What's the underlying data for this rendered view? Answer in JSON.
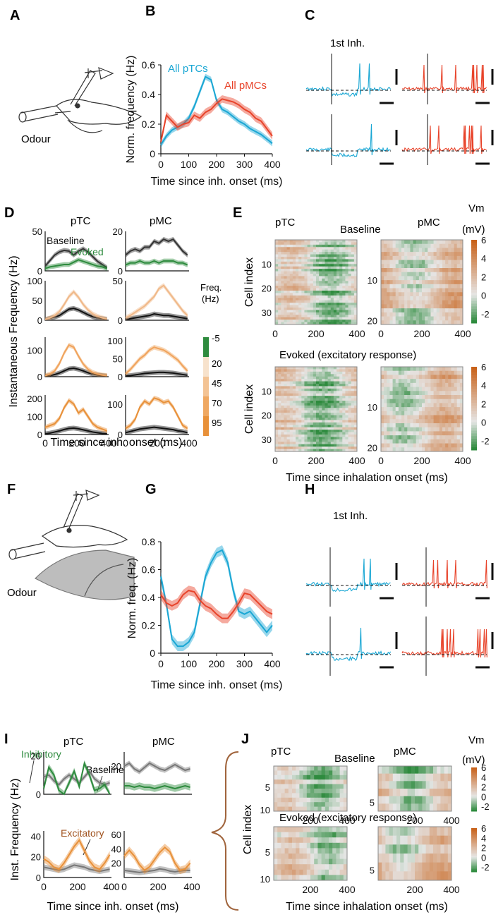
{
  "colors": {
    "ptc": "#1aa7d4",
    "pmc": "#e8432a",
    "baseline": "#111111",
    "evoked": "#2e8b3e",
    "excitatory": "#e8913a",
    "inhibitory": "#2e8b3e",
    "heat_low": "#2e8b3e",
    "heat_mid": "#e6e6e6",
    "heat_high": "#c8621a",
    "grey_shade": "#bdbdbd",
    "brace": "#a0643c"
  },
  "panels": {
    "A": "A",
    "B": "B",
    "C": "C",
    "D": "D",
    "E": "E",
    "F": "F",
    "G": "G",
    "H": "H",
    "I": "I",
    "J": "J"
  },
  "icons": [
    "mouse-headfixed-icon",
    "electrode-icon",
    "odour-port-icon"
  ],
  "labels": {
    "odour": "Odour",
    "first_inh": "1st Inh.",
    "ptc": "pTC",
    "pmc": "pMC",
    "baseline": "Baseline",
    "evoked": "Evoked",
    "excitatory": "Excitatory",
    "inhibitory": "Inhibitory",
    "evoked_exc": "Evoked (excitatory response)",
    "vm": "Vm",
    "vm_unit": "(mV)",
    "freq": "Freq.",
    "freq_unit": "(Hz)",
    "time_inh": "Time since inh. onset (ms)",
    "time_inhalation": "Time since inhalation onset (ms)",
    "cell_index": "Cell index",
    "inst_freq": "Instantaneous Frequency (Hz)",
    "inst_freq_short": "Inst. Frequency (Hz)"
  },
  "chart_data": [
    {
      "id": "B",
      "type": "line",
      "xlabel": "Time since inh. onset (ms)",
      "ylabel": "Norm. frequency (Hz)",
      "xlim": [
        0,
        400
      ],
      "ylim": [
        0,
        0.6
      ],
      "xticks": [
        "0",
        "100",
        "200",
        "300",
        "400"
      ],
      "yticks": [
        "0",
        "0.2",
        "0.4",
        "0.6"
      ],
      "x": [
        0,
        20,
        40,
        60,
        80,
        100,
        120,
        140,
        160,
        180,
        200,
        220,
        240,
        260,
        280,
        300,
        320,
        340,
        360,
        380,
        400
      ],
      "series": [
        {
          "name": "All pTCs",
          "values": [
            0.06,
            0.12,
            0.16,
            0.18,
            0.2,
            0.24,
            0.32,
            0.42,
            0.52,
            0.5,
            0.36,
            0.3,
            0.28,
            0.25,
            0.22,
            0.2,
            0.17,
            0.15,
            0.13,
            0.1,
            0.07
          ],
          "err": 0.02
        },
        {
          "name": "All pMCs",
          "values": [
            0.08,
            0.26,
            0.22,
            0.18,
            0.2,
            0.21,
            0.26,
            0.24,
            0.28,
            0.3,
            0.34,
            0.37,
            0.36,
            0.35,
            0.33,
            0.3,
            0.28,
            0.24,
            0.22,
            0.17,
            0.12
          ],
          "err": 0.025
        }
      ]
    },
    {
      "id": "D",
      "type": "line",
      "xlabel": "Time since inh. onset (ms)",
      "ylabel": "Instantaneous Frequency (Hz)",
      "columns": [
        "pTC",
        "pMC"
      ],
      "rows": [
        {
          "ymax": [
            50,
            20
          ],
          "yticks": [
            [
              "0",
              "50"
            ],
            [
              "0",
              "20"
            ]
          ],
          "series": [
            {
              "name": "Baseline",
              "ptc": [
                6,
                13,
                20,
                24,
                26,
                25,
                20,
                25,
                28,
                24,
                18,
                12,
                8,
                4
              ],
              "pmc": [
                8,
                10,
                11,
                10,
                12,
                12,
                15,
                14,
                16,
                15,
                16,
                13,
                10,
                8
              ]
            },
            {
              "name": "Evoked",
              "ptc": [
                3,
                5,
                6,
                7,
                8,
                8,
                11,
                14,
                12,
                10,
                8,
                6,
                5,
                3
              ],
              "pmc": [
                3,
                4,
                4,
                5,
                4,
                4,
                5,
                4,
                5,
                5,
                5,
                4,
                4,
                3
              ]
            }
          ]
        },
        {
          "ymax": [
            100,
            50
          ],
          "yticks": [
            [
              "0",
              "50",
              "100"
            ],
            [
              "0",
              "50"
            ]
          ],
          "series": [
            {
              "name": "Baseline",
              "ptc": [
                2,
                5,
                8,
                12,
                20,
                28,
                30,
                26,
                20,
                14,
                9,
                6,
                4,
                2
              ],
              "pmc": [
                1,
                2,
                3,
                4,
                5,
                6,
                8,
                7,
                6,
                6,
                5,
                4,
                3,
                2
              ]
            },
            {
              "name": "Evoked",
              "ptc": [
                2,
                6,
                12,
                22,
                40,
                60,
                72,
                58,
                40,
                26,
                16,
                10,
                6,
                3
              ],
              "pmc": [
                3,
                6,
                10,
                14,
                18,
                24,
                30,
                40,
                44,
                36,
                28,
                20,
                12,
                6
              ]
            }
          ]
        },
        {
          "ymax": [
            150,
            110
          ],
          "yticks": [
            [
              "0",
              "100"
            ],
            [
              "0",
              "50",
              "100"
            ]
          ],
          "series": [
            {
              "name": "Baseline",
              "ptc": [
                2,
                4,
                8,
                14,
                22,
                30,
                32,
                28,
                22,
                15,
                10,
                6,
                4,
                2
              ],
              "pmc": [
                2,
                3,
                5,
                7,
                9,
                10,
                11,
                12,
                12,
                11,
                10,
                8,
                6,
                4
              ]
            },
            {
              "name": "Evoked",
              "ptc": [
                4,
                10,
                22,
                50,
                90,
                120,
                112,
                78,
                48,
                28,
                16,
                10,
                6,
                4
              ],
              "pmc": [
                8,
                20,
                35,
                50,
                60,
                74,
                82,
                78,
                74,
                66,
                56,
                46,
                30,
                16
              ]
            }
          ]
        },
        {
          "ymax": [
            220,
            130
          ],
          "yticks": [
            [
              "0",
              "100",
              "200"
            ],
            [
              "0",
              "100"
            ]
          ],
          "series": [
            {
              "name": "Baseline",
              "ptc": [
                4,
                8,
                14,
                20,
                28,
                34,
                36,
                32,
                26,
                20,
                14,
                10,
                6,
                4
              ],
              "pmc": [
                6,
                10,
                14,
                18,
                20,
                22,
                24,
                22,
                20,
                18,
                16,
                12,
                10,
                6
              ]
            },
            {
              "name": "Evoked",
              "ptc": [
                40,
                50,
                60,
                90,
                150,
                190,
                170,
                120,
                140,
                100,
                60,
                40,
                30,
                20
              ],
              "pmc": [
                20,
                30,
                50,
                90,
                110,
                100,
                120,
                115,
                105,
                110,
                90,
                60,
                30,
                20
              ]
            }
          ]
        }
      ],
      "x": [
        0,
        30,
        60,
        90,
        120,
        150,
        180,
        210,
        240,
        270,
        300,
        330,
        360,
        390
      ],
      "xticks": [
        "0",
        "200",
        "400"
      ],
      "colorbar": {
        "label": "Freq. (Hz)",
        "ticks": [
          "-5",
          "20",
          "45",
          "70",
          "95"
        ]
      }
    },
    {
      "id": "E",
      "type": "heatmap",
      "xlabel": "Time since inhalation onset (ms)",
      "ylabel": "Cell index",
      "title": "Baseline",
      "panels": [
        {
          "name": "pTC Baseline",
          "cells": 35,
          "yticks": [
            "10",
            "20",
            "30"
          ],
          "xticks": [
            "0",
            "200",
            "400"
          ]
        },
        {
          "name": "pMC Baseline",
          "cells": 21,
          "yticks": [
            "10",
            "20"
          ],
          "xticks": [
            "0",
            "200",
            "400"
          ]
        },
        {
          "name": "pTC Evoked",
          "cells": 35,
          "yticks": [
            "10",
            "20",
            "30"
          ],
          "xticks": [
            "0",
            "200",
            "400"
          ]
        },
        {
          "name": "pMC Evoked",
          "cells": 21,
          "yticks": [
            "10",
            "20"
          ],
          "xticks": [
            "0",
            "200",
            "400"
          ]
        }
      ],
      "colorbar": {
        "label": "Vm (mV)",
        "ticks": [
          "6",
          "4",
          "2",
          "0",
          "-2"
        ],
        "range": [
          -3,
          6
        ]
      }
    },
    {
      "id": "G",
      "type": "line",
      "xlabel": "Time since inh. onset (ms)",
      "ylabel": "Norm. freq. (Hz)",
      "xlim": [
        0,
        400
      ],
      "ylim": [
        0,
        0.8
      ],
      "xticks": [
        "0",
        "100",
        "200",
        "300",
        "400"
      ],
      "yticks": [
        "0",
        "0.2",
        "0.4",
        "0.6",
        "0.8"
      ],
      "x": [
        0,
        20,
        40,
        60,
        80,
        100,
        120,
        140,
        160,
        180,
        200,
        220,
        240,
        260,
        280,
        300,
        320,
        340,
        360,
        380,
        400
      ],
      "series": [
        {
          "name": "pTC",
          "values": [
            0.55,
            0.35,
            0.1,
            0.05,
            0.05,
            0.08,
            0.15,
            0.35,
            0.55,
            0.65,
            0.72,
            0.74,
            0.65,
            0.45,
            0.3,
            0.28,
            0.3,
            0.25,
            0.2,
            0.15,
            0.2
          ],
          "err": 0.035
        },
        {
          "name": "pMC",
          "values": [
            0.42,
            0.36,
            0.34,
            0.36,
            0.42,
            0.45,
            0.44,
            0.38,
            0.34,
            0.32,
            0.28,
            0.25,
            0.25,
            0.3,
            0.36,
            0.43,
            0.42,
            0.38,
            0.34,
            0.3,
            0.28
          ],
          "err": 0.035
        }
      ]
    },
    {
      "id": "I",
      "type": "line",
      "xlabel": "Time since inh. onset (ms)",
      "ylabel": "Inst. Frequency (Hz)",
      "x": [
        0,
        30,
        60,
        90,
        120,
        150,
        180,
        210,
        240,
        270,
        300,
        330,
        360,
        390
      ],
      "xticks_left": [
        "0",
        "200",
        "400"
      ],
      "xticks_right": [
        "0",
        "200",
        "400"
      ],
      "top": {
        "ptc": {
          "ymax": 22,
          "yticks": [
            "0",
            "20"
          ],
          "Baseline": [
            9,
            10,
            7,
            5,
            8,
            10,
            8,
            6,
            9,
            12,
            8,
            6,
            5,
            6
          ],
          "Inhibitory": [
            3,
            14,
            10,
            2,
            0,
            6,
            12,
            4,
            16,
            10,
            2,
            3,
            5,
            0
          ]
        },
        "pmc": {
          "ymax": 30,
          "yticks": [
            "20"
          ],
          "Baseline": [
            20,
            22,
            18,
            16,
            19,
            22,
            20,
            18,
            17,
            19,
            21,
            19,
            17,
            18
          ],
          "Inhibitory": [
            6,
            6,
            5,
            6,
            5,
            5,
            4,
            5,
            6,
            5,
            4,
            5,
            6,
            5
          ]
        }
      },
      "bottom": {
        "ptc": {
          "ymax": 45,
          "yticks": [
            "0",
            "20",
            "40"
          ],
          "Baseline": [
            10,
            9,
            8,
            7,
            8,
            10,
            12,
            11,
            10,
            8,
            7,
            6,
            7,
            8
          ],
          "Excitatory": [
            18,
            15,
            10,
            8,
            14,
            22,
            30,
            36,
            26,
            16,
            10,
            8,
            14,
            22
          ]
        },
        "pmc": {
          "ymax": 65,
          "yticks": [
            "20",
            "40",
            "60"
          ],
          "Baseline": [
            10,
            9,
            8,
            7,
            8,
            9,
            10,
            12,
            11,
            9,
            8,
            9,
            10,
            10
          ],
          "Excitatory": [
            30,
            38,
            30,
            18,
            10,
            15,
            25,
            35,
            42,
            36,
            20,
            10,
            12,
            20
          ]
        }
      }
    },
    {
      "id": "J",
      "type": "heatmap",
      "xlabel": "Time since inhalation onset (ms)",
      "ylabel": "Cell index",
      "title": "Baseline",
      "panels": [
        {
          "name": "pTC Baseline",
          "cells": 10,
          "yticks": [
            "5",
            "10"
          ],
          "xticks": [
            "200",
            "400"
          ]
        },
        {
          "name": "pMC Baseline",
          "cells": 6,
          "yticks": [
            "5"
          ],
          "xticks": [
            "200",
            "400"
          ]
        },
        {
          "name": "pTC Evoked",
          "cells": 10,
          "yticks": [
            "5",
            "10"
          ],
          "xticks": [
            "200",
            "400"
          ]
        },
        {
          "name": "pMC Evoked",
          "cells": 6,
          "yticks": [
            "5"
          ],
          "xticks": [
            "200",
            "400"
          ]
        }
      ],
      "colorbar": {
        "label": "Vm (mV)",
        "ticks": [
          "6",
          "4",
          "2",
          "0",
          "-2"
        ],
        "range": [
          -3,
          6
        ]
      }
    }
  ]
}
